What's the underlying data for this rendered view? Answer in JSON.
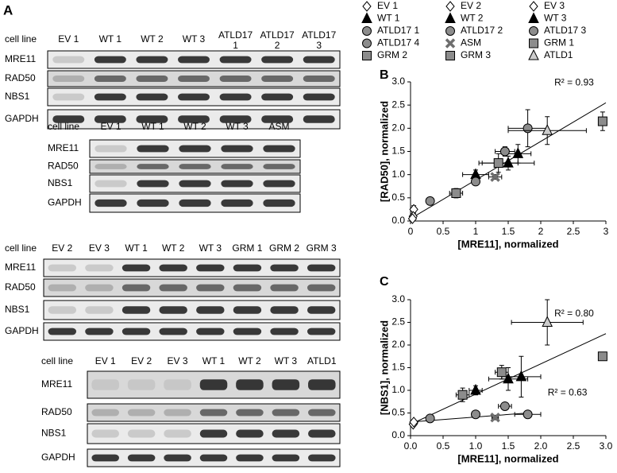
{
  "panel_label": "A",
  "blots": [
    {
      "header": "cell line",
      "lanes": [
        "EV 1",
        "WT 1",
        "WT 2",
        "WT 3",
        "ATLD17 1",
        "ATLD17 2",
        "ATLD17 3"
      ],
      "rows": [
        "MRE11",
        "RAD50",
        "NBS1",
        "GAPDH"
      ]
    },
    {
      "header": "cell line",
      "lanes": [
        "EV 1",
        "WT 1",
        "WT 2",
        "WT 3",
        "ASM"
      ],
      "rows": [
        "MRE11",
        "RAD50",
        "NBS1",
        "GAPDH"
      ]
    },
    {
      "header": "cell line",
      "lanes": [
        "EV 2",
        "EV 3",
        "WT 1",
        "WT 2",
        "WT 3",
        "GRM 1",
        "GRM 2",
        "GRM 3"
      ],
      "rows": [
        "MRE11",
        "RAD50",
        "NBS1",
        "GAPDH"
      ]
    },
    {
      "header": "cell line",
      "lanes": [
        "EV 1",
        "EV 2",
        "EV 3",
        "WT 1",
        "WT 2",
        "WT 3",
        "ATLD1"
      ],
      "rows": [
        "MRE11",
        "RAD50",
        "NBS1",
        "GAPDH"
      ]
    }
  ],
  "chart_data": [
    {
      "type": "scatter",
      "label": "B",
      "x_label": "[MRE11], normalized",
      "y_label": "[RAD50], normalized",
      "xlim": [
        0,
        3
      ],
      "ylim": [
        0,
        3
      ],
      "xticks": [
        0,
        0.5,
        1,
        1.5,
        2,
        2.5,
        3
      ],
      "yticks": [
        {
          "value": 0,
          "label": "0.0"
        },
        0.5,
        {
          "value": 1,
          "label": "1.0"
        },
        1.5,
        {
          "value": 2,
          "label": "2.0"
        },
        2.5,
        {
          "value": 3,
          "label": "3.0"
        }
      ],
      "trendlines": [
        {
          "x": [
            0,
            3
          ],
          "values": [
            0.05,
            2.55
          ],
          "label": "R² = 0.93"
        }
      ],
      "series": [
        {
          "name": "EV 1",
          "marker": "diamond",
          "color": "#ffffff",
          "x": [
            0.05
          ],
          "values": [
            0.25
          ],
          "xerr": [
            0.03
          ],
          "yerr": [
            0.08
          ]
        },
        {
          "name": "EV 2",
          "marker": "diamond",
          "color": "#ffffff",
          "x": [
            0.04
          ],
          "values": [
            0.1
          ],
          "xerr": [
            0.02
          ],
          "yerr": [
            0.03
          ]
        },
        {
          "name": "EV 3",
          "marker": "diamond",
          "color": "#ffffff",
          "x": [
            0.03
          ],
          "values": [
            0.05
          ],
          "xerr": [
            0.02
          ],
          "yerr": [
            0.03
          ]
        },
        {
          "name": "WT 1",
          "marker": "triangle",
          "color": "#000000",
          "x": [
            1.0
          ],
          "values": [
            1.0
          ],
          "xerr": [
            0.2
          ],
          "yerr": [
            0.1
          ]
        },
        {
          "name": "WT 2",
          "marker": "triangle",
          "color": "#000000",
          "x": [
            1.5
          ],
          "values": [
            1.25
          ],
          "xerr": [
            0.4
          ],
          "yerr": [
            0.15
          ]
        },
        {
          "name": "WT 3",
          "marker": "triangle",
          "color": "#000000",
          "x": [
            1.65
          ],
          "values": [
            1.45
          ],
          "xerr": [
            0.2
          ],
          "yerr": [
            0.2
          ]
        },
        {
          "name": "ATLD17 1",
          "marker": "circle",
          "color": "#8c8c8c",
          "x": [
            0.3
          ],
          "values": [
            0.43
          ],
          "xerr": [
            0.03
          ],
          "yerr": [
            0.03
          ]
        },
        {
          "name": "ATLD17 2",
          "marker": "circle",
          "color": "#8c8c8c",
          "x": [
            1.0
          ],
          "values": [
            0.85
          ],
          "xerr": [
            0.05
          ],
          "yerr": [
            0.05
          ]
        },
        {
          "name": "ATLD17 3",
          "marker": "circle",
          "color": "#8c8c8c",
          "x": [
            1.8
          ],
          "values": [
            2.0
          ],
          "xerr": [
            0.3
          ],
          "yerr": [
            0.4
          ]
        },
        {
          "name": "ATLD17 4",
          "marker": "circle",
          "color": "#8c8c8c",
          "x": [
            1.45
          ],
          "values": [
            1.5
          ],
          "xerr": [
            0.15
          ],
          "yerr": [
            0.1
          ]
        },
        {
          "name": "ASM",
          "marker": "cross",
          "color": "#6e6e6e",
          "x": [
            1.3
          ],
          "values": [
            0.95
          ],
          "xerr": [
            0.1
          ],
          "yerr": [
            0.05
          ]
        },
        {
          "name": "GRM 1",
          "marker": "square",
          "color": "#8c8c8c",
          "x": [
            2.95
          ],
          "values": [
            2.15
          ],
          "xerr": [
            0.05
          ],
          "yerr": [
            0.2
          ]
        },
        {
          "name": "GRM 2",
          "marker": "square",
          "color": "#8c8c8c",
          "x": [
            1.35
          ],
          "values": [
            1.25
          ],
          "xerr": [
            0.3
          ],
          "yerr": [
            0.2
          ]
        },
        {
          "name": "GRM 3",
          "marker": "square",
          "color": "#8c8c8c",
          "x": [
            0.7
          ],
          "values": [
            0.6
          ],
          "xerr": [
            0.1
          ],
          "yerr": [
            0.1
          ]
        },
        {
          "name": "ATLD1",
          "marker": "triangle",
          "color": "#cccccc",
          "x": [
            2.1
          ],
          "values": [
            1.95
          ],
          "xerr": [
            0.6
          ],
          "yerr": [
            0.3
          ]
        }
      ]
    },
    {
      "type": "scatter",
      "label": "C",
      "x_label": "[MRE11], normalized",
      "y_label": "[NBS1], normalized",
      "xlim": [
        0,
        3
      ],
      "ylim": [
        0,
        3
      ],
      "xticks": [
        {
          "value": 0,
          "label": "0.0"
        },
        0.5,
        {
          "value": 1,
          "label": "1.0"
        },
        1.5,
        {
          "value": 2,
          "label": "2.0"
        },
        2.5,
        {
          "value": 3,
          "label": "3.0"
        }
      ],
      "yticks": [
        {
          "value": 0,
          "label": "0.0"
        },
        0.5,
        {
          "value": 1,
          "label": "1.0"
        },
        1.5,
        {
          "value": 2,
          "label": "2.0"
        },
        2.5,
        {
          "value": 3,
          "label": "3.0"
        }
      ],
      "trendlines": [
        {
          "x": [
            0,
            3
          ],
          "values": [
            0.25,
            2.25
          ],
          "label": "R² = 0.80"
        },
        {
          "x": [
            0,
            1.8
          ],
          "values": [
            0.3,
            0.5
          ],
          "label": "R² = 0.63"
        }
      ],
      "series": [
        {
          "marker": "diamond",
          "color": "#ffffff",
          "x": [
            0.05
          ],
          "values": [
            0.28
          ],
          "xerr": [
            0.03
          ],
          "yerr": [
            0.03
          ]
        },
        {
          "marker": "diamond",
          "color": "#ffffff",
          "x": [
            0.04
          ],
          "values": [
            0.25
          ],
          "xerr": [
            0.02
          ],
          "yerr": [
            0.02
          ]
        },
        {
          "marker": "diamond",
          "color": "#ffffff",
          "x": [
            0.05
          ],
          "values": [
            0.3
          ],
          "xerr": [
            0.02
          ],
          "yerr": [
            0.02
          ]
        },
        {
          "marker": "triangle",
          "color": "#000000",
          "x": [
            1.0
          ],
          "values": [
            1.0
          ],
          "xerr": [
            0.1
          ],
          "yerr": [
            0.1
          ]
        },
        {
          "marker": "triangle",
          "color": "#000000",
          "x": [
            1.5
          ],
          "values": [
            1.25
          ],
          "xerr": [
            0.3
          ],
          "yerr": [
            0.25
          ]
        },
        {
          "marker": "triangle",
          "color": "#000000",
          "x": [
            1.7
          ],
          "values": [
            1.3
          ],
          "xerr": [
            0.3
          ],
          "yerr": [
            0.45
          ]
        },
        {
          "marker": "circle",
          "color": "#8c8c8c",
          "x": [
            0.3
          ],
          "values": [
            0.38
          ],
          "xerr": [
            0.03
          ],
          "yerr": [
            0.03
          ]
        },
        {
          "marker": "circle",
          "color": "#8c8c8c",
          "x": [
            1.0
          ],
          "values": [
            0.47
          ],
          "xerr": [
            0.05
          ],
          "yerr": [
            0.03
          ]
        },
        {
          "marker": "circle",
          "color": "#8c8c8c",
          "x": [
            1.8
          ],
          "values": [
            0.47
          ],
          "xerr": [
            0.2
          ],
          "yerr": [
            0.05
          ]
        },
        {
          "marker": "circle",
          "color": "#8c8c8c",
          "x": [
            1.45
          ],
          "values": [
            0.65
          ],
          "xerr": [
            0.1
          ],
          "yerr": [
            0.05
          ]
        },
        {
          "marker": "cross",
          "color": "#6e6e6e",
          "x": [
            1.3
          ],
          "values": [
            0.4
          ],
          "xerr": [
            0.05
          ],
          "yerr": [
            0.05
          ]
        },
        {
          "marker": "square",
          "color": "#8c8c8c",
          "x": [
            2.95
          ],
          "values": [
            1.75
          ],
          "xerr": [
            0.05
          ],
          "yerr": [
            0.05
          ]
        },
        {
          "marker": "square",
          "color": "#8c8c8c",
          "x": [
            1.4
          ],
          "values": [
            1.4
          ],
          "xerr": [
            0.1
          ],
          "yerr": [
            0.15
          ]
        },
        {
          "marker": "square",
          "color": "#8c8c8c",
          "x": [
            0.8
          ],
          "values": [
            0.9
          ],
          "xerr": [
            0.1
          ],
          "yerr": [
            0.15
          ]
        },
        {
          "marker": "triangle",
          "color": "#cccccc",
          "x": [
            2.1
          ],
          "values": [
            2.5
          ],
          "xerr": [
            0.55
          ],
          "yerr": [
            0.5
          ]
        }
      ]
    }
  ]
}
